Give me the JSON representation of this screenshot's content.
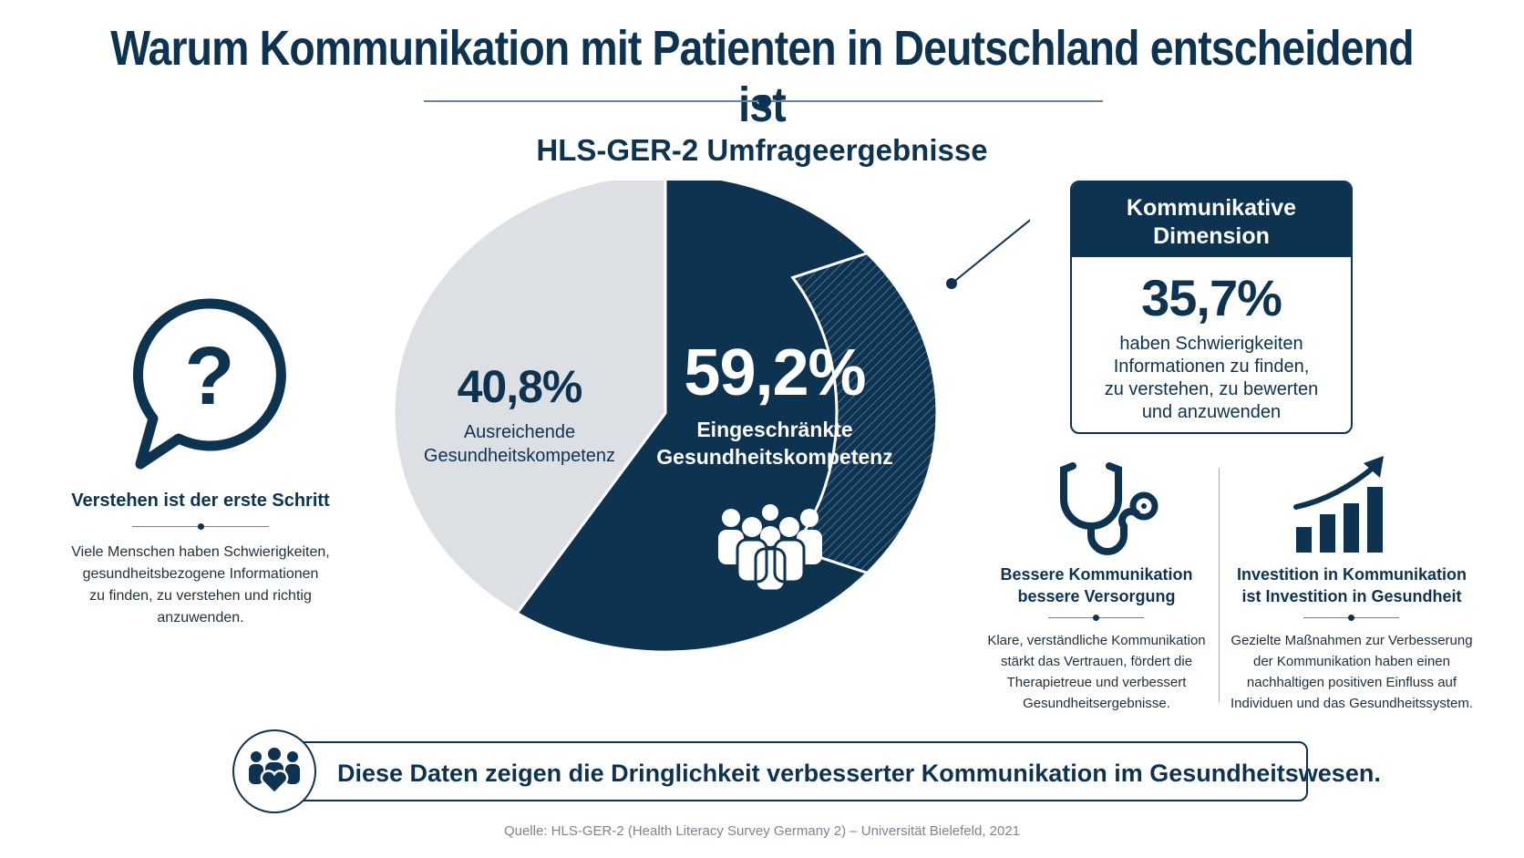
{
  "title": "Warum Kommunikation mit Patienten in Deutschland entscheidend ist",
  "subtitle": "HLS-GER-2 Umfrageergebnisse",
  "colors": {
    "navy": "#0e3350",
    "light_gray": "#dcdfe4",
    "hatch": "#1d4a6b"
  },
  "chart_data": {
    "type": "pie",
    "slices": [
      {
        "label_lines": [
          "Ausreichende",
          "Gesundheitskompetenz"
        ],
        "value": 40.8,
        "display": "40,8%",
        "color": "#dcdfe4"
      },
      {
        "label_lines": [
          "Eingeschränkte",
          "Gesundheitskompetenz"
        ],
        "value": 59.2,
        "display": "59,2%",
        "color": "#0e3350"
      }
    ]
  },
  "callout": {
    "title_lines": [
      "Kommunikative",
      "Dimension"
    ],
    "value": "35,7%",
    "desc_lines": [
      "haben Schwierigkeiten",
      "Informationen zu finden,",
      "zu verstehen, zu bewerten",
      "und anzuwenden"
    ]
  },
  "left_panel": {
    "icon": "question-bubble-icon",
    "title": "Verstehen ist der erste Schritt",
    "desc_lines": [
      "Viele Menschen haben Schwierigkeiten,",
      "gesundheitsbezogene Informationen",
      "zu finden, zu verstehen und richtig",
      "anzuwenden."
    ]
  },
  "cards": [
    {
      "icon": "stethoscope-icon",
      "title_lines": [
        "Bessere Kommunikation",
        "bessere Versorgung"
      ],
      "desc_lines": [
        "Klare, verständliche Kommunikation",
        "stärkt das Vertrauen, fördert die",
        "Therapietreue und verbessert",
        "Gesundheitsergebnisse."
      ]
    },
    {
      "icon": "growth-chart-icon",
      "title_lines": [
        "Investition in Kommunikation",
        "ist Investition in Gesundheit"
      ],
      "desc_lines": [
        "Gezielte Maßnahmen zur Verbesserung",
        "der Kommunikation haben einen",
        "nachhaltigen positiven Einfluss auf",
        "Individuen und das Gesundheitssystem."
      ]
    }
  ],
  "banner": {
    "icon": "people-heart-icon",
    "text": "Diese Daten zeigen die Dringlichkeit verbesserter Kommunikation im Gesundheitswesen."
  },
  "source": "Quelle: HLS-GER-2 (Health Literacy Survey Germany 2) – Universität Bielefeld, 2021"
}
